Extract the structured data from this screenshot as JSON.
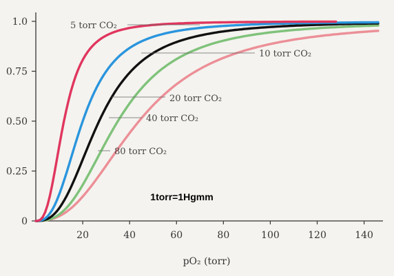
{
  "chart_data": {
    "type": "line",
    "title": "",
    "xlabel": "pO₂ (torr)",
    "ylabel": "",
    "xlim": [
      0,
      146
    ],
    "ylim": [
      0,
      1.0
    ],
    "x_ticks": [
      20,
      40,
      60,
      80,
      100,
      120,
      140
    ],
    "y_ticks": [
      0,
      0.25,
      0.5,
      0.75,
      1.0
    ],
    "x_tick_labels": [
      "20",
      "40",
      "60",
      "80",
      "100",
      "120",
      "140"
    ],
    "y_tick_labels": [
      "0",
      "0.25",
      "0.50",
      "0.75",
      "1.0"
    ],
    "grid": false,
    "annotation": "1torr=1Hgmm",
    "series": [
      {
        "name": "5 torr CO₂",
        "color": "#e0365e",
        "p50": 12,
        "n": 2.8,
        "x": [
          0,
          10,
          20,
          30,
          40,
          60,
          80,
          100,
          128
        ],
        "values": [
          0,
          0.4,
          0.83,
          0.94,
          0.97,
          0.99,
          1.0,
          1.0,
          1.0
        ]
      },
      {
        "name": "10 torr CO₂",
        "color": "#2a95dd",
        "p50": 20,
        "n": 2.7,
        "x": [
          0,
          10,
          20,
          30,
          40,
          60,
          80,
          100,
          120,
          146
        ],
        "values": [
          0,
          0.13,
          0.5,
          0.75,
          0.87,
          0.95,
          0.98,
          0.99,
          1.0,
          1.0
        ]
      },
      {
        "name": "",
        "color": "#111111",
        "p50": 27,
        "n": 2.7,
        "x": [
          0,
          10,
          20,
          30,
          40,
          60,
          80,
          100,
          120,
          146
        ],
        "values": [
          0,
          0.06,
          0.31,
          0.57,
          0.74,
          0.9,
          0.95,
          0.97,
          0.98,
          1.0
        ]
      },
      {
        "name": "20 torr CO₂",
        "color": "#7fc27a",
        "p50": 35,
        "n": 2.7,
        "x": [
          0,
          10,
          20,
          30,
          40,
          60,
          80,
          100,
          120,
          146
        ],
        "values": [
          0,
          0.03,
          0.17,
          0.4,
          0.59,
          0.81,
          0.91,
          0.95,
          0.97,
          0.99
        ]
      },
      {
        "name": "40 torr CO₂",
        "color": "#7fc27a",
        "p50": 35,
        "n": 2.7,
        "x": [
          0,
          10,
          20,
          30,
          40,
          60,
          80,
          100,
          120,
          146
        ],
        "values": [
          0,
          0.03,
          0.17,
          0.4,
          0.59,
          0.81,
          0.91,
          0.95,
          0.97,
          0.99
        ]
      },
      {
        "name": "80 torr CO₂",
        "color": "#ec8f97",
        "p50": 44,
        "n": 2.5,
        "x": [
          0,
          10,
          20,
          30,
          40,
          60,
          80,
          100,
          120,
          146
        ],
        "values": [
          0,
          0.02,
          0.11,
          0.27,
          0.45,
          0.68,
          0.82,
          0.89,
          0.93,
          0.96
        ]
      }
    ]
  }
}
